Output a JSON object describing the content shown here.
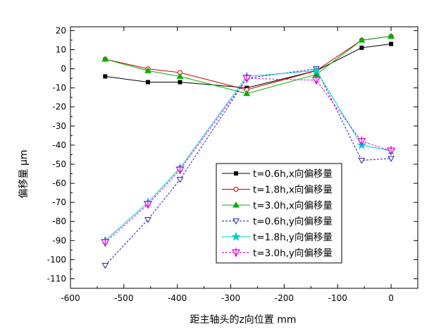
{
  "chart_data": {
    "type": "line",
    "title": "",
    "xlabel": "距主轴头的z向位置    mm",
    "ylabel": "偏移量  μm",
    "xlim": [
      -600,
      50
    ],
    "ylim": [
      -115,
      22
    ],
    "xticks": [
      -600,
      -500,
      -400,
      -300,
      -200,
      -100,
      0
    ],
    "yticks": [
      -110,
      -100,
      -90,
      -80,
      -70,
      -60,
      -50,
      -40,
      -30,
      -20,
      -10,
      0,
      10,
      20
    ],
    "grid": false,
    "legend_position": "lower-right",
    "series": [
      {
        "name": "t=0.6h,x向偏移量",
        "color": "#000000",
        "line": "solid",
        "marker": "square",
        "x": [
          -535,
          -455,
          -395,
          -270,
          -140,
          -55,
          0
        ],
        "y": [
          -4,
          -7,
          -7,
          -10,
          -1,
          11,
          13
        ]
      },
      {
        "name": "t=1.8h,x向偏移量",
        "color": "#cc0000",
        "line": "solid",
        "marker": "circle-open",
        "x": [
          -535,
          -455,
          -395,
          -270,
          -140,
          -55,
          0
        ],
        "y": [
          5,
          0,
          -2,
          -11,
          -1,
          15,
          17
        ]
      },
      {
        "name": "t=3.0h,x向偏移量",
        "color": "#00b000",
        "line": "solid",
        "marker": "triangle-up",
        "x": [
          -535,
          -455,
          -395,
          -270,
          -140,
          -55,
          0
        ],
        "y": [
          5,
          -1,
          -4,
          -13,
          -3,
          15,
          17
        ]
      },
      {
        "name": "t=0.6h,y向偏移量",
        "color": "#2222aa",
        "line": "dashed",
        "marker": "triangle-down-open",
        "x": [
          -535,
          -455,
          -395,
          -270,
          -140,
          -55,
          0
        ],
        "y": [
          -103,
          -79,
          -58,
          -5,
          0,
          -48,
          -47
        ]
      },
      {
        "name": "t=1.8h,y向偏移量",
        "color": "#00cccc",
        "line": "solid",
        "marker": "star",
        "x": [
          -535,
          -455,
          -395,
          -270,
          -140,
          -55,
          0
        ],
        "y": [
          -90,
          -70,
          -52,
          -4,
          -1,
          -40,
          -43
        ]
      },
      {
        "name": "t=3.0h,y向偏移量",
        "color": "#dd00dd",
        "line": "dashed",
        "marker": "triangle-down-cross",
        "x": [
          -535,
          -455,
          -395,
          -270,
          -140,
          -55,
          0
        ],
        "y": [
          -91,
          -71,
          -53,
          -5,
          -6,
          -38,
          -43
        ]
      }
    ]
  }
}
